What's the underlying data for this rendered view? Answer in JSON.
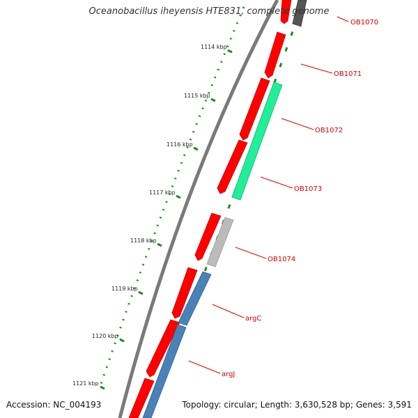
{
  "title": "Oceanobacillus iheyensis HTE831, complete genome",
  "footer": {
    "accession": "Accession: NC_004193",
    "summary": "Topology: circular; Length: 3,630,528 bp; Genes: 3,591"
  },
  "ticks": [
    {
      "label": "1114 kbp"
    },
    {
      "label": "1115 kbp"
    },
    {
      "label": "1116 kbp"
    },
    {
      "label": "1117 kbp"
    },
    {
      "label": "1118 kbp"
    },
    {
      "label": "1119 kbp"
    },
    {
      "label": "1120 kbp"
    },
    {
      "label": "1121 kbp"
    }
  ],
  "genes": [
    {
      "label": "OB1070"
    },
    {
      "label": "OB1071"
    },
    {
      "label": "OB1072"
    },
    {
      "label": "OB1073"
    },
    {
      "label": "OB1074"
    },
    {
      "label": "argC"
    },
    {
      "label": "argJ"
    }
  ],
  "colors": {
    "forward_cds": "#ff0000",
    "reverse_cds_green": "#22ee99",
    "reverse_cds_gray": "#bbbbbb",
    "reverse_cds_blue": "#4a82b8",
    "backbone": "#7a7a7a",
    "tick": "#1c8a1c",
    "label": "#dd0000"
  }
}
